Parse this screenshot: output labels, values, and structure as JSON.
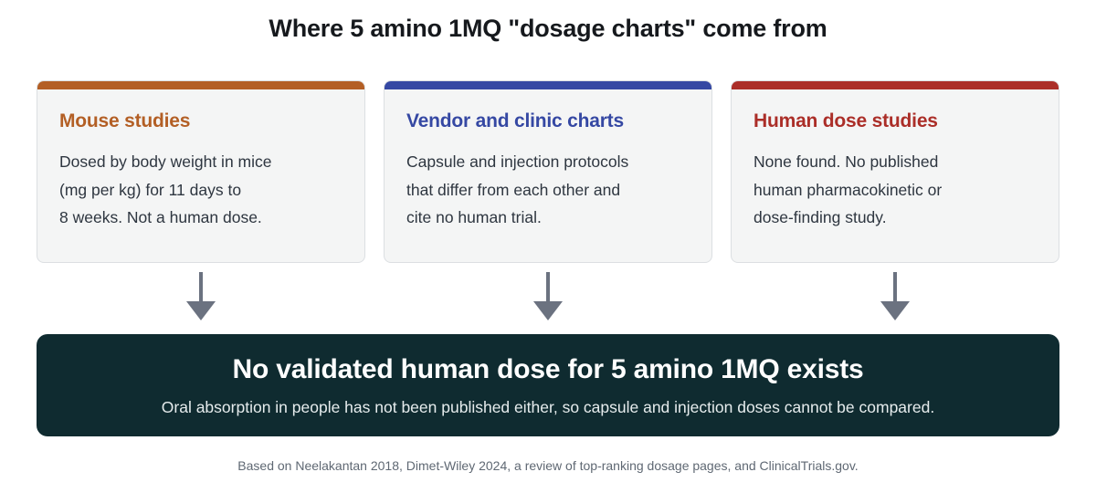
{
  "title": "Where 5 amino 1MQ \"dosage charts\" come from",
  "cards": [
    {
      "heading": "Mouse studies",
      "color": "#b35f25",
      "lines": [
        "Dosed by body weight in mice",
        "(mg per kg) for 11 days to",
        "8 weeks. Not a human dose."
      ]
    },
    {
      "heading": "Vendor and clinic charts",
      "color": "#3548a3",
      "lines": [
        "Capsule and injection protocols",
        "that differ from each other and",
        "cite no human trial."
      ]
    },
    {
      "heading": "Human dose studies",
      "color": "#ab2e28",
      "lines": [
        "None found. No published",
        "human pharmacokinetic or",
        "dose-finding study."
      ]
    }
  ],
  "conclusion": {
    "headline": "No validated human dose for 5 amino 1MQ exists",
    "subtext": "Oral absorption in people has not been published either, so capsule and injection doses cannot be compared.",
    "background": "#0f2b30"
  },
  "arrow_color": "#6b7280",
  "source": "Based on Neelakantan 2018, Dimet-Wiley 2024, a review of top-ranking dosage pages, and ClinicalTrials.gov."
}
